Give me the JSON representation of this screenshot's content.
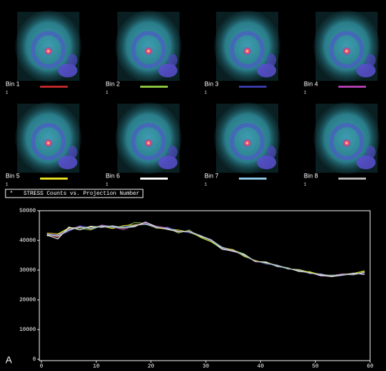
{
  "chart_data": {
    "type": "line",
    "title": "STRESS Counts vs. Projection Number",
    "x": [
      1,
      3,
      5,
      7,
      9,
      11,
      13,
      15,
      17,
      19,
      21,
      23,
      25,
      27,
      29,
      31,
      33,
      35,
      37,
      39,
      41,
      43,
      45,
      47,
      49,
      51,
      53,
      55,
      57,
      59
    ],
    "series": [
      {
        "name": "Bin 1",
        "color": "#c0282a",
        "values": [
          42000,
          41000,
          43500,
          44500,
          44000,
          45000,
          44500,
          44000,
          45000,
          45500,
          44500,
          44000,
          43000,
          43000,
          41500,
          40000,
          37500,
          36500,
          35000,
          33000,
          32500,
          31500,
          30500,
          30000,
          29000,
          28500,
          28000,
          28500,
          28500,
          29000
        ]
      },
      {
        "name": "Bin 2",
        "color": "#8cc63f",
        "values": [
          41500,
          42000,
          44000,
          44000,
          43500,
          45000,
          44800,
          44500,
          46000,
          45800,
          44500,
          44300,
          42500,
          43500,
          41000,
          39500,
          37000,
          36800,
          35500,
          33000,
          32800,
          31500,
          30800,
          29500,
          29500,
          28300,
          28300,
          28500,
          28800,
          29500
        ]
      },
      {
        "name": "Bin 3",
        "color": "#3a3aa8",
        "values": [
          42000,
          41500,
          43000,
          45000,
          44200,
          44500,
          44300,
          44800,
          44800,
          46000,
          44000,
          44500,
          43200,
          42500,
          41800,
          39800,
          37800,
          36500,
          34800,
          33200,
          32000,
          31800,
          30300,
          30200,
          28800,
          28800,
          27900,
          28200,
          28700,
          29200
        ]
      },
      {
        "name": "Bin 4",
        "color": "#b040b0",
        "values": [
          42200,
          41800,
          43800,
          44800,
          43800,
          45200,
          44600,
          43500,
          45300,
          45800,
          44800,
          44200,
          42800,
          43200,
          41600,
          40300,
          37300,
          36200,
          35200,
          32800,
          32600,
          31300,
          30600,
          29800,
          29200,
          28000,
          28200,
          28800,
          28500,
          29000
        ]
      },
      {
        "name": "Bin 5",
        "color": "#e8e020",
        "values": [
          42500,
          42200,
          44200,
          44300,
          44500,
          44800,
          44000,
          45000,
          45200,
          45500,
          44200,
          43800,
          43500,
          42800,
          41200,
          39500,
          37600,
          36900,
          34600,
          33300,
          32300,
          31600,
          30400,
          30200,
          29300,
          28600,
          28100,
          28600,
          28900,
          29800
        ]
      },
      {
        "name": "Bin 6",
        "color": "#ffffff",
        "values": [
          41800,
          40500,
          44500,
          43500,
          44800,
          44400,
          44900,
          44200,
          44600,
          46200,
          44600,
          43700,
          42900,
          43000,
          41400,
          40100,
          37000,
          36400,
          35300,
          32900,
          32700,
          31200,
          30700,
          29600,
          29100,
          28200,
          27800,
          28300,
          29000,
          28500
        ]
      },
      {
        "name": "Bin 7",
        "color": "#8ec8e8",
        "values": [
          42100,
          41600,
          43600,
          44600,
          44100,
          44900,
          44700,
          44300,
          45100,
          45400,
          44400,
          44100,
          43100,
          42900,
          41500,
          39900,
          37400,
          36700,
          35100,
          33100,
          32400,
          31400,
          30500,
          30100,
          29000,
          28400,
          28200,
          28400,
          28600,
          29100
        ]
      },
      {
        "name": "Bin 8",
        "color": "#b8b8b8",
        "values": [
          41900,
          41300,
          43400,
          44400,
          43900,
          44700,
          44400,
          44100,
          44900,
          45600,
          44600,
          43900,
          43000,
          43100,
          41700,
          40200,
          37700,
          36600,
          34900,
          33000,
          32500,
          31700,
          30600,
          29900,
          28900,
          28700,
          28000,
          28600,
          28400,
          29300
        ]
      }
    ],
    "xlim": [
      0,
      60
    ],
    "xticks": [
      0,
      10,
      20,
      30,
      40,
      50,
      60
    ],
    "ylim": [
      0,
      50000
    ],
    "yticks": [
      0,
      10000,
      20000,
      30000,
      40000,
      50000
    ]
  },
  "legend_marker": "*",
  "panel_corner": "1",
  "figure_label": "A"
}
